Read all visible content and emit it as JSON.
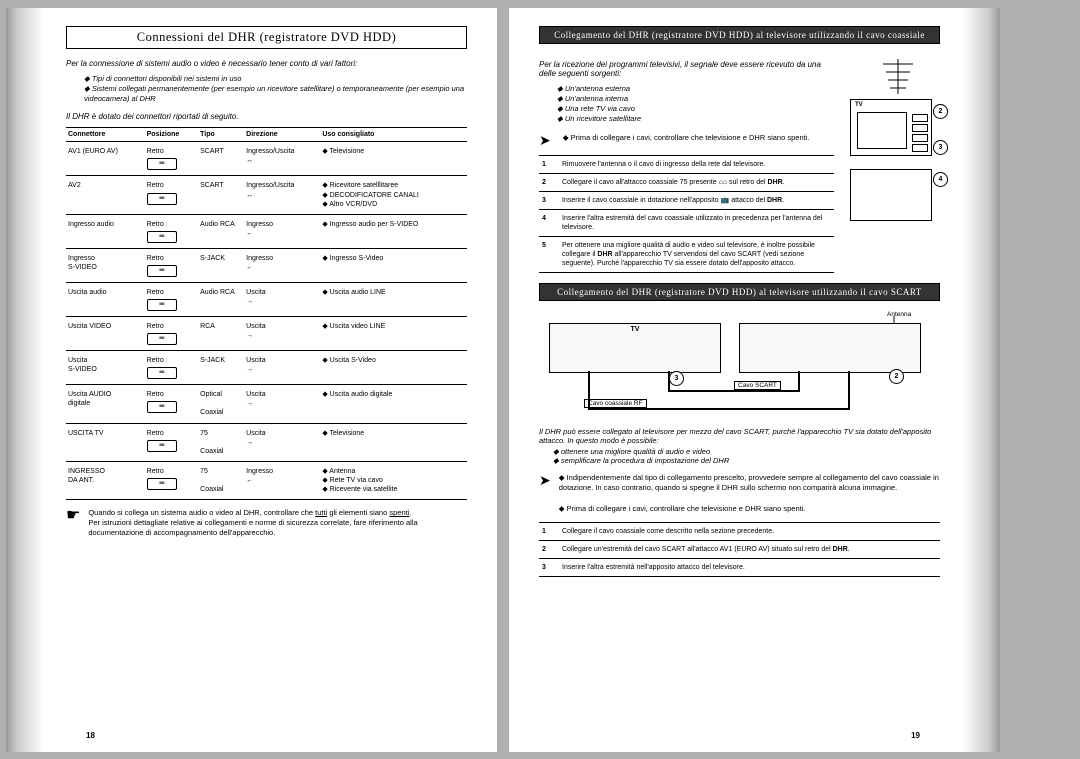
{
  "left": {
    "title": "Connessioni del DHR (registratore DVD HDD)",
    "intro": "Per la connessione di sistemi audio o video è necessario tener conto di vari fattori:",
    "intro_bullets": [
      "Tipi di connettori disponibili nei sistemi in uso",
      "Sistemi collegati permanentemente (per esempio un ricevitore satellitare) o temporaneamente (per esempio una videocamera) al DHR"
    ],
    "sub_intro": "Il DHR è dotato dei connettori riportati di seguito.",
    "columns": [
      "Connettore",
      "Posizione",
      "Tipo",
      "Direzione",
      "Uso consigliato"
    ],
    "rows": [
      {
        "c": "AV1 (EURO AV)",
        "p": "Retro",
        "t": "SCART",
        "d": "Ingresso/Uscita\n↔",
        "u": [
          "Televisione"
        ]
      },
      {
        "c": "AV2",
        "p": "Retro",
        "t": "SCART",
        "d": "Ingresso/Uscita\n↔",
        "u": [
          "Ricevitore satelllitaree",
          "DECODIFICATORE CANALI",
          "Altro VCR/DVD"
        ]
      },
      {
        "c": "Ingresso audio",
        "p": "Retro",
        "t": "Audio RCA",
        "d": "Ingresso\n←",
        "u": [
          "Ingresso audio per S-VIDEO"
        ]
      },
      {
        "c": "Ingresso\nS-VIDEO",
        "p": "Retro",
        "t": "S-JACK",
        "d": "Ingresso\n←",
        "u": [
          "Ingresso S-Video"
        ]
      },
      {
        "c": "Uscita audio",
        "p": "Retro",
        "t": "Audio RCA",
        "d": "Uscita\n→",
        "u": [
          "Uscita audio LINE"
        ]
      },
      {
        "c": "Uscita VIDEO",
        "p": "Retro",
        "t": "RCA",
        "d": "Uscita\n→",
        "u": [
          "Uscita video LINE"
        ]
      },
      {
        "c": "Uscita\nS-VIDEO",
        "p": "Retro",
        "t": "S-JACK",
        "d": "Uscita\n→",
        "u": [
          "Uscita S-Video"
        ]
      },
      {
        "c": "Uscita AUDIO\ndigitale",
        "p": "Retro",
        "t": "Optical\n\nCoaxial",
        "d": "Uscita\n→",
        "u": [
          "Uscita audio digitale"
        ]
      },
      {
        "c": "USCITA TV",
        "p": "Retro",
        "t": "75\n\nCoaxial",
        "d": "Uscita\n→",
        "u": [
          "Televisione"
        ]
      },
      {
        "c": "INGRESSO\nDA ANT.",
        "p": "Retro",
        "t": "75\n\nCoaxial",
        "d": "Ingresso\n←",
        "u": [
          "Antenna",
          "Rete TV via cavo",
          "Ricevente via satellite"
        ]
      }
    ],
    "footnote": "Quando si collega un sistema audio o video al DHR, controllare che tutti gli elementi siano spenti.\nPer istruzioni dettagliate relative ai collegamenti e norme di sicurezza correlate, fare riferimento alla documentazione di accompagnamento dell'apparecchio.",
    "page_num": "18"
  },
  "right": {
    "title1": "Collegamento del DHR (registratore DVD HDD) al televisore utilizzando il cavo coassiale",
    "intro1": "Per la ricezione dei programmi televisivi, il segnale deve essere ricevuto da una delle seguenti sorgenti:",
    "intro1_bullets": [
      "Un'antenna esterna",
      "Un'antenna interna",
      "Una rete TV via cavo",
      "Un ricevitore satellitare"
    ],
    "warn1": "Prima di collegare i cavi, controllare che televisione e DHR siano spenti.",
    "steps1": [
      {
        "n": "1",
        "t": "Rimuovere l'antenna o il cavo di ingresso della rete dal televisore."
      },
      {
        "n": "2",
        "t": "Collegare il cavo all'attacco coassiale 75 presente ⌂⌂ sul retro del DHR."
      },
      {
        "n": "3",
        "t": "Inserire il cavo coassiale in dotazione nell'apposito 📺 attacco del DHR."
      },
      {
        "n": "4",
        "t": "Inserire l'altra estremità del cavo coassiale utilizzato in precedenza per l'antenna del televisore."
      },
      {
        "n": "5",
        "t": "Per ottenere una migliore qualità di audio e video sul televisore, è inoltre possibile collegare il DHR all'apparecchio TV servendosi del cavo SCART (vedi sezione seguente). Purché l'apparecchio TV sia essere dotato dell'apposito attacco."
      }
    ],
    "title2": "Collegamento del DHR (registratore DVD HDD) al televisore utilizzando il cavo SCART",
    "diag_labels": {
      "antenna": "Antenna",
      "tv": "TV",
      "cavo_scart": "Cavo SCART",
      "cavo_rf": "Cavo coassiale RF"
    },
    "scart_note": "Il DHR può essere collegato al televisore per mezzo del cavo SCART, purché l'apparecchio TV sia dotato dell'apposito attacco. In questo modo è possibile:",
    "scart_bullets": [
      "ottenere una migliore qualità di audio e video",
      "semplificare la procedura di impostazione del DHR"
    ],
    "warn2a": "Indipendentemente dal tipo di collegamento prescelto, provvedere sempre al collegamento del cavo coassiale in dotazione. In caso contrario, quando si spegne il DHR sullo schermo non comparirà alcuna immagine.",
    "warn2b": "Prima di collegare i cavi, controllare che televisione e DHR siano spenti.",
    "steps2": [
      {
        "n": "1",
        "t": "Collegare il cavo coassiale come descritto nella sezione precedente."
      },
      {
        "n": "2",
        "t": "Collegare un'estremità del cavo SCART all'attacco AV1 (EURO AV) situato sul retro del DHR."
      },
      {
        "n": "3",
        "t": "Inserire l'altra estremità nell'apposito attacco del televisore."
      }
    ],
    "page_num": "19"
  },
  "colors": {
    "page_bg": "#ffffff",
    "text": "#000000",
    "dark_title_bg": "#333333"
  }
}
